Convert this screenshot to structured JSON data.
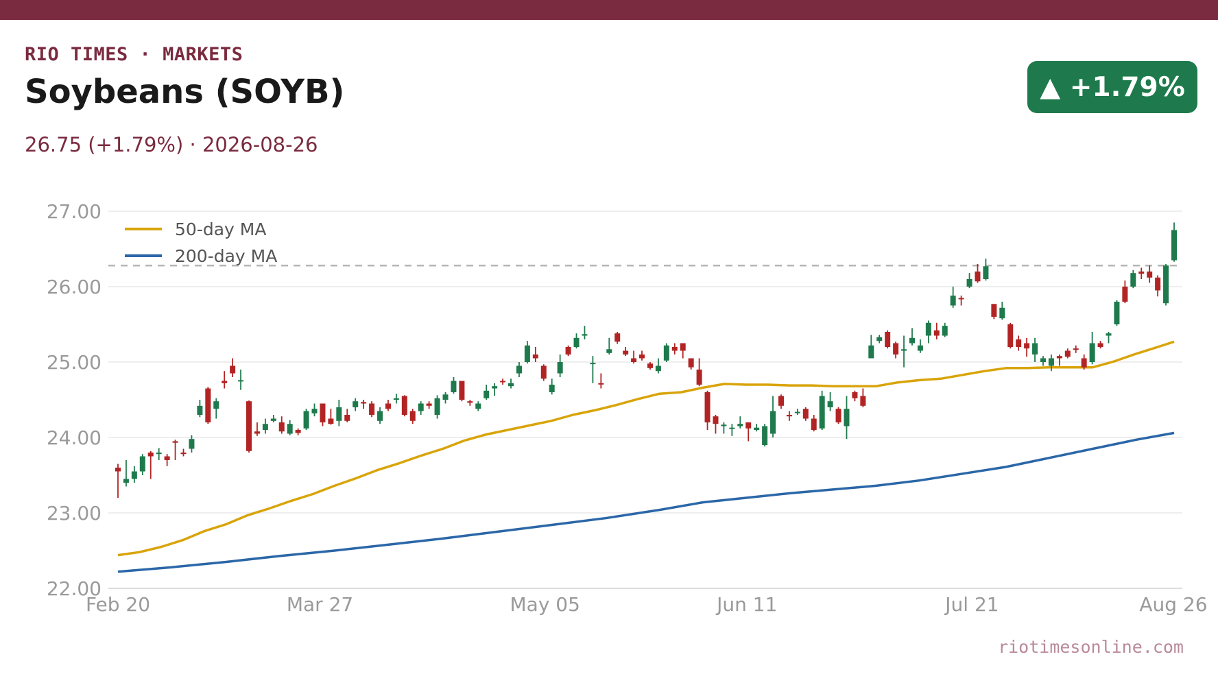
{
  "header": {
    "brand": "RIO TIMES · MARKETS",
    "title": "Soybeans (SOYB)",
    "subtitle": "26.75 (+1.79%)  ·  2026-08-26",
    "badge": "▲ +1.79%"
  },
  "footer": {
    "source": "riotimesonline.com"
  },
  "colors": {
    "brand": "#7a2b3f",
    "up": "#1e7a4c",
    "down": "#b22424",
    "ma50": "#d9a40a",
    "ma200": "#2b67a8"
  },
  "chart_data": {
    "type": "candlestick",
    "y_ticks": [
      "27.00",
      "26.00",
      "25.00",
      "24.00",
      "23.00",
      "22.00"
    ],
    "y_tick_values": [
      27,
      26,
      25,
      24,
      23,
      22
    ],
    "ylim": [
      22,
      27
    ],
    "x_ticks": [
      "Feb 20",
      "Mar 27",
      "May 05",
      "Jun 11",
      "Jul 21",
      "Aug 26"
    ],
    "x_tick_index": [
      0,
      35,
      74,
      109,
      148,
      183
    ],
    "reference_line": 26.28,
    "legend": {
      "position": "top-left",
      "items": [
        "50-day MA",
        "200-day MA"
      ]
    },
    "series": [
      {
        "name": "50-day MA",
        "color": "#d9a40a",
        "values": [
          [
            0,
            22.44
          ],
          [
            4,
            22.48
          ],
          [
            8,
            22.55
          ],
          [
            12,
            22.64
          ],
          [
            16,
            22.76
          ],
          [
            20,
            22.85
          ],
          [
            24,
            22.97
          ],
          [
            28,
            23.06
          ],
          [
            32,
            23.16
          ],
          [
            36,
            23.25
          ],
          [
            40,
            23.36
          ],
          [
            44,
            23.46
          ],
          [
            48,
            23.57
          ],
          [
            52,
            23.66
          ],
          [
            56,
            23.76
          ],
          [
            60,
            23.85
          ],
          [
            64,
            23.96
          ],
          [
            68,
            24.04
          ],
          [
            72,
            24.1
          ],
          [
            76,
            24.16
          ],
          [
            80,
            24.22
          ],
          [
            84,
            24.3
          ],
          [
            88,
            24.36
          ],
          [
            92,
            24.43
          ],
          [
            96,
            24.51
          ],
          [
            100,
            24.58
          ],
          [
            104,
            24.6
          ],
          [
            108,
            24.66
          ],
          [
            112,
            24.71
          ],
          [
            116,
            24.7
          ],
          [
            120,
            24.7
          ],
          [
            124,
            24.69
          ],
          [
            128,
            24.69
          ],
          [
            132,
            24.68
          ],
          [
            136,
            24.68
          ],
          [
            140,
            24.68
          ],
          [
            144,
            24.73
          ],
          [
            148,
            24.76
          ],
          [
            152,
            24.78
          ],
          [
            156,
            24.83
          ],
          [
            160,
            24.88
          ],
          [
            164,
            24.92
          ],
          [
            168,
            24.92
          ],
          [
            172,
            24.93
          ],
          [
            176,
            24.93
          ],
          [
            180,
            24.93
          ],
          [
            184,
            25.01
          ],
          [
            188,
            25.11
          ],
          [
            192,
            25.2
          ],
          [
            195,
            25.27
          ]
        ]
      },
      {
        "name": "200-day MA",
        "color": "#2b67a8",
        "values": [
          [
            0,
            22.22
          ],
          [
            10,
            22.28
          ],
          [
            20,
            22.35
          ],
          [
            30,
            22.43
          ],
          [
            40,
            22.5
          ],
          [
            50,
            22.58
          ],
          [
            60,
            22.66
          ],
          [
            70,
            22.75
          ],
          [
            80,
            22.84
          ],
          [
            90,
            22.93
          ],
          [
            100,
            23.04
          ],
          [
            108,
            23.14
          ],
          [
            116,
            23.2
          ],
          [
            124,
            23.26
          ],
          [
            132,
            23.31
          ],
          [
            140,
            23.36
          ],
          [
            148,
            23.43
          ],
          [
            156,
            23.52
          ],
          [
            164,
            23.61
          ],
          [
            172,
            23.73
          ],
          [
            180,
            23.85
          ],
          [
            188,
            23.97
          ],
          [
            195,
            24.06
          ]
        ]
      }
    ],
    "candles": [
      [
        0,
        23.6,
        23.55,
        23.65,
        23.2
      ],
      [
        1,
        23.4,
        23.45,
        23.7,
        23.35
      ],
      [
        2,
        23.45,
        23.55,
        23.62,
        23.4
      ],
      [
        3,
        23.55,
        23.75,
        23.78,
        23.5
      ],
      [
        4,
        23.8,
        23.75,
        23.82,
        23.45
      ],
      [
        5,
        23.78,
        23.8,
        23.86,
        23.7
      ],
      [
        6,
        23.75,
        23.7,
        23.78,
        23.62
      ],
      [
        7,
        23.95,
        23.93,
        23.97,
        23.7
      ],
      [
        8,
        23.8,
        23.78,
        23.85,
        23.75
      ],
      [
        9,
        23.85,
        23.98,
        24.03,
        23.8
      ],
      [
        10,
        24.3,
        24.42,
        24.5,
        24.27
      ],
      [
        11,
        24.65,
        24.2,
        24.67,
        24.18
      ],
      [
        12,
        24.38,
        24.48,
        24.52,
        24.25
      ],
      [
        13,
        24.75,
        24.72,
        24.88,
        24.65
      ],
      [
        14,
        24.95,
        24.85,
        25.05,
        24.8
      ],
      [
        15,
        24.75,
        24.76,
        24.9,
        24.63
      ],
      [
        16,
        24.48,
        23.82,
        24.49,
        23.8
      ],
      [
        17,
        24.08,
        24.05,
        24.2,
        24.02
      ],
      [
        18,
        24.1,
        24.18,
        24.25,
        24.05
      ],
      [
        19,
        24.22,
        24.25,
        24.3,
        24.2
      ],
      [
        20,
        24.2,
        24.08,
        24.28,
        24.05
      ],
      [
        21,
        24.05,
        24.18,
        24.23,
        24.03
      ],
      [
        22,
        24.1,
        24.06,
        24.12,
        24.03
      ],
      [
        23,
        24.12,
        24.35,
        24.38,
        24.1
      ],
      [
        24,
        24.32,
        24.38,
        24.45,
        24.28
      ],
      [
        25,
        24.45,
        24.2,
        24.45,
        24.15
      ],
      [
        26,
        24.25,
        24.18,
        24.38,
        24.17
      ],
      [
        27,
        24.22,
        24.4,
        24.5,
        24.15
      ],
      [
        28,
        24.3,
        24.22,
        24.38,
        24.2
      ],
      [
        29,
        24.4,
        24.48,
        24.52,
        24.35
      ],
      [
        30,
        24.47,
        24.45,
        24.5,
        24.38
      ],
      [
        31,
        24.45,
        24.3,
        24.48,
        24.27
      ],
      [
        32,
        24.22,
        24.35,
        24.4,
        24.18
      ],
      [
        33,
        24.45,
        24.38,
        24.5,
        24.35
      ],
      [
        34,
        24.5,
        24.52,
        24.58,
        24.45
      ],
      [
        35,
        24.55,
        24.3,
        24.56,
        24.28
      ],
      [
        36,
        24.35,
        24.22,
        24.38,
        24.18
      ],
      [
        37,
        24.35,
        24.45,
        24.48,
        24.3
      ],
      [
        38,
        24.45,
        24.42,
        24.48,
        24.38
      ],
      [
        39,
        24.3,
        24.52,
        24.56,
        24.25
      ],
      [
        40,
        24.5,
        24.57,
        24.6,
        24.45
      ],
      [
        41,
        24.6,
        24.75,
        24.8,
        24.58
      ],
      [
        42,
        24.75,
        24.5,
        24.75,
        24.48
      ],
      [
        43,
        24.48,
        24.46,
        24.5,
        24.42
      ],
      [
        44,
        24.38,
        24.45,
        24.48,
        24.35
      ],
      [
        45,
        24.52,
        24.62,
        24.7,
        24.5
      ],
      [
        46,
        24.65,
        24.68,
        24.72,
        24.55
      ],
      [
        47,
        24.75,
        24.74,
        24.78,
        24.7
      ],
      [
        48,
        24.68,
        24.72,
        24.78,
        24.65
      ],
      [
        49,
        24.85,
        24.95,
        25.0,
        24.8
      ],
      [
        50,
        25.0,
        25.22,
        25.28,
        24.98
      ],
      [
        51,
        25.1,
        25.05,
        25.2,
        25.0
      ],
      [
        52,
        24.95,
        24.78,
        24.97,
        24.75
      ],
      [
        53,
        24.6,
        24.7,
        24.78,
        24.57
      ],
      [
        54,
        24.85,
        25.0,
        25.1,
        24.8
      ],
      [
        55,
        25.2,
        25.1,
        25.22,
        25.08
      ],
      [
        56,
        25.2,
        25.32,
        25.38,
        25.18
      ],
      [
        57,
        25.35,
        25.37,
        25.48,
        25.3
      ],
      [
        58,
        24.98,
        24.99,
        25.08,
        24.72
      ],
      [
        59,
        24.72,
        24.71,
        24.85,
        24.65
      ],
      [
        60,
        25.12,
        25.17,
        25.32,
        25.1
      ],
      [
        61,
        25.38,
        25.27,
        25.4,
        25.24
      ],
      [
        62,
        25.15,
        25.1,
        25.2,
        25.08
      ],
      [
        63,
        25.05,
        25.0,
        25.15,
        24.98
      ],
      [
        64,
        25.1,
        25.05,
        25.15,
        25.02
      ],
      [
        65,
        24.98,
        24.92,
        25.0,
        24.9
      ],
      [
        66,
        24.88,
        24.95,
        25.05,
        24.85
      ],
      [
        67,
        25.02,
        25.22,
        25.25,
        25.0
      ],
      [
        68,
        25.2,
        25.15,
        25.25,
        25.1
      ],
      [
        69,
        25.25,
        25.15,
        25.25,
        25.05
      ],
      [
        70,
        25.05,
        24.93,
        25.05,
        24.9
      ],
      [
        71,
        24.9,
        24.7,
        25.05,
        24.68
      ],
      [
        72,
        24.6,
        24.2,
        24.62,
        24.1
      ],
      [
        73,
        24.28,
        24.18,
        24.3,
        24.05
      ],
      [
        74,
        24.15,
        24.17,
        24.2,
        24.05
      ],
      [
        75,
        24.12,
        24.13,
        24.18,
        24.02
      ],
      [
        76,
        24.15,
        24.18,
        24.28,
        24.12
      ],
      [
        77,
        24.2,
        24.12,
        24.2,
        23.95
      ],
      [
        78,
        24.1,
        24.13,
        24.18,
        24.08
      ],
      [
        79,
        23.9,
        24.15,
        24.18,
        23.88
      ],
      [
        80,
        24.05,
        24.35,
        24.55,
        24.0
      ],
      [
        81,
        24.55,
        24.42,
        24.57,
        24.38
      ],
      [
        82,
        24.3,
        24.28,
        24.35,
        24.22
      ],
      [
        83,
        24.33,
        24.34,
        24.38,
        24.3
      ],
      [
        84,
        24.38,
        24.25,
        24.4,
        24.22
      ],
      [
        85,
        24.25,
        24.1,
        24.3,
        24.08
      ],
      [
        86,
        24.12,
        24.55,
        24.62,
        24.1
      ],
      [
        87,
        24.4,
        24.48,
        24.6,
        24.35
      ],
      [
        88,
        24.38,
        24.2,
        24.4,
        24.18
      ],
      [
        89,
        24.15,
        24.38,
        24.55,
        23.98
      ],
      [
        90,
        24.6,
        24.52,
        24.62,
        24.48
      ],
      [
        91,
        24.55,
        24.42,
        24.65,
        24.4
      ],
      [
        92,
        25.05,
        25.22,
        25.36,
        25.05
      ],
      [
        93,
        25.28,
        25.33,
        25.36,
        25.25
      ],
      [
        94,
        25.4,
        25.2,
        25.42,
        25.18
      ],
      [
        95,
        25.25,
        25.1,
        25.27,
        25.05
      ],
      [
        96,
        25.15,
        25.17,
        25.35,
        24.93
      ],
      [
        97,
        25.25,
        25.32,
        25.45,
        25.22
      ],
      [
        98,
        25.15,
        25.22,
        25.3,
        25.12
      ],
      [
        99,
        25.35,
        25.52,
        25.55,
        25.25
      ],
      [
        100,
        25.42,
        25.35,
        25.52,
        25.3
      ],
      [
        101,
        25.35,
        25.48,
        25.52,
        25.33
      ],
      [
        102,
        25.75,
        25.88,
        26.0,
        25.72
      ],
      [
        103,
        25.85,
        25.84,
        25.88,
        25.75
      ],
      [
        104,
        26.0,
        26.1,
        26.18,
        25.98
      ],
      [
        105,
        26.2,
        26.07,
        26.3,
        26.05
      ],
      [
        106,
        26.1,
        26.27,
        26.37,
        26.08
      ],
      [
        107,
        25.77,
        25.6,
        25.77,
        25.57
      ],
      [
        108,
        25.58,
        25.72,
        25.8,
        25.56
      ],
      [
        109,
        25.5,
        25.2,
        25.52,
        25.18
      ],
      [
        110,
        25.3,
        25.2,
        25.35,
        25.15
      ],
      [
        111,
        25.25,
        25.18,
        25.32,
        25.07
      ],
      [
        112,
        25.1,
        25.25,
        25.32,
        25.0
      ],
      [
        113,
        25.0,
        25.05,
        25.08,
        24.95
      ],
      [
        114,
        24.95,
        25.05,
        25.1,
        24.88
      ],
      [
        115,
        25.08,
        25.05,
        25.1,
        24.95
      ],
      [
        116,
        25.15,
        25.07,
        25.18,
        25.05
      ],
      [
        117,
        25.18,
        25.17,
        25.22,
        25.12
      ],
      [
        118,
        25.05,
        24.93,
        25.1,
        24.9
      ],
      [
        119,
        25.0,
        25.25,
        25.4,
        24.97
      ],
      [
        120,
        25.25,
        25.2,
        25.28,
        25.18
      ],
      [
        121,
        25.35,
        25.38,
        25.4,
        25.25
      ],
      [
        122,
        25.5,
        25.8,
        25.82,
        25.48
      ],
      [
        123,
        26.0,
        25.8,
        26.08,
        25.78
      ],
      [
        124,
        26.0,
        26.18,
        26.22,
        25.98
      ],
      [
        125,
        26.2,
        26.17,
        26.25,
        26.1
      ],
      [
        126,
        26.2,
        26.12,
        26.28,
        26.05
      ],
      [
        127,
        26.12,
        25.95,
        26.15,
        25.87
      ],
      [
        128,
        25.78,
        26.28,
        26.3,
        25.75
      ],
      [
        129,
        26.35,
        26.75,
        26.85,
        26.33
      ]
    ],
    "plot": {
      "x_index_max": 195
    }
  }
}
